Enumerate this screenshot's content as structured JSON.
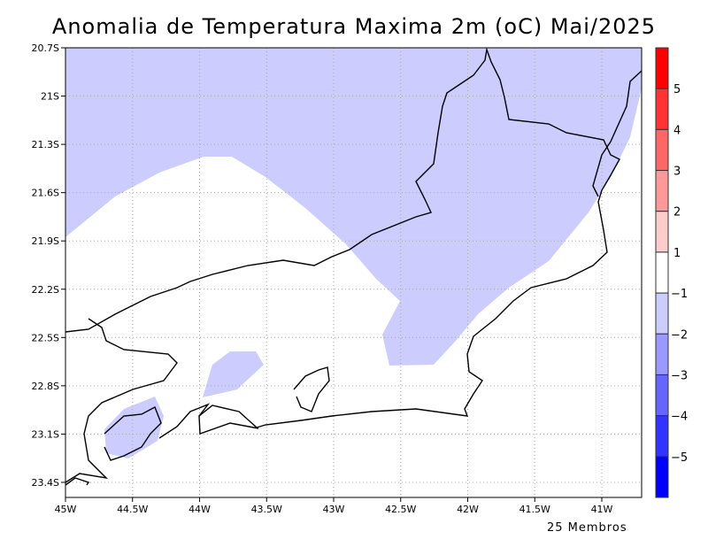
{
  "title": "Anomalia de Temperatura Maxima 2m (oC) Mai/2025",
  "footer": "25 Membros",
  "map": {
    "lon_range": [
      -45,
      -40.7
    ],
    "lat_range": [
      -23.49,
      -20.7
    ],
    "lon_ticks": [
      "45W",
      "44.5W",
      "44W",
      "43.5W",
      "43W",
      "42.5W",
      "42W",
      "41.5W",
      "41W"
    ],
    "lat_ticks": [
      "20.7S",
      "21S",
      "21.3S",
      "21.6S",
      "21.9S",
      "22.2S",
      "22.5S",
      "22.8S",
      "23.1S",
      "23.4S"
    ],
    "shading_color": "#ccccff"
  },
  "colorbar": {
    "colors": [
      "#ff0000",
      "#ff3333",
      "#ff6666",
      "#ff9999",
      "#ffcccc",
      "#ffffff",
      "#ccccff",
      "#9999ff",
      "#6666ff",
      "#3333ff",
      "#0000ff"
    ],
    "labels": [
      "5",
      "4",
      "3",
      "2",
      "1",
      "−1",
      "−2",
      "−3",
      "−4",
      "−5"
    ]
  }
}
